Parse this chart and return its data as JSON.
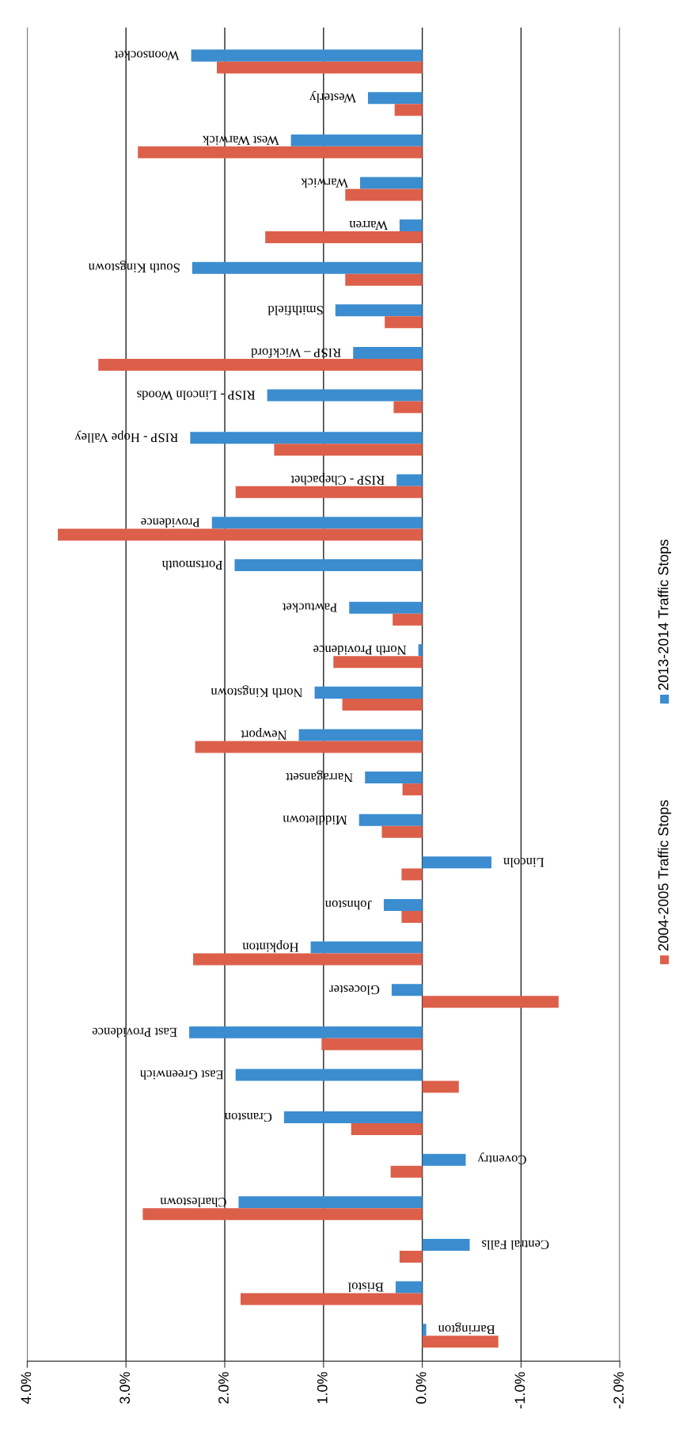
{
  "chart_data": {
    "type": "bar",
    "orientation": "horizontal",
    "categories": [
      "Woonsocket",
      "Westerly",
      "West Warwick",
      "Warwick",
      "Warren",
      "South Kingstown",
      "Smithfield",
      "RISP – Wickford",
      "RISP - Lincoln Woods",
      "RISP - Hope Valley",
      "RISP - Chepachet",
      "Providence",
      "Portsmouth",
      "Pawtucket",
      "North Providence",
      "North Kingstown",
      "Newport",
      "Narragansett",
      "Middletown",
      "Lincoln",
      "Johnston",
      "Hopkinton",
      "Glocester",
      "East Providence",
      "East Greenwich",
      "Cranston",
      "Coventry",
      "Charlestown",
      "Central Falls",
      "Bristol",
      "Barrington"
    ],
    "series": [
      {
        "name": "2013-2014 Traffic Stops",
        "color": "#3b8dd0",
        "values": [
          2.34,
          0.55,
          1.33,
          0.63,
          0.23,
          2.33,
          0.88,
          0.7,
          1.57,
          2.35,
          0.26,
          2.13,
          1.9,
          0.74,
          0.04,
          1.09,
          1.25,
          0.58,
          0.64,
          -0.7,
          0.39,
          1.13,
          0.31,
          2.36,
          1.89,
          1.4,
          -0.44,
          1.86,
          -0.48,
          0.27,
          -0.04
        ]
      },
      {
        "name": "2004-2005 Traffic Stops",
        "color": "#dc5f4a",
        "values": [
          2.08,
          0.28,
          2.88,
          0.78,
          1.59,
          0.78,
          0.38,
          3.28,
          0.29,
          1.5,
          1.89,
          3.69,
          0,
          0.3,
          0.9,
          0.81,
          2.3,
          0.2,
          0.41,
          0.21,
          0.21,
          2.32,
          -1.38,
          1.02,
          -0.37,
          0.72,
          0.32,
          2.83,
          0.23,
          1.84,
          -0.77
        ]
      }
    ],
    "xlim": [
      4,
      -2
    ],
    "xticks": [
      {
        "value": 4,
        "label": "4.0%"
      },
      {
        "value": 3,
        "label": "3.0%"
      },
      {
        "value": 2,
        "label": "2.0%"
      },
      {
        "value": 1,
        "label": "1.0%"
      },
      {
        "value": 0,
        "label": "0.0%"
      },
      {
        "value": -1,
        "label": "-1.0%"
      },
      {
        "value": -2,
        "label": "-2.0%"
      }
    ],
    "grid": "x",
    "legend": "right"
  }
}
